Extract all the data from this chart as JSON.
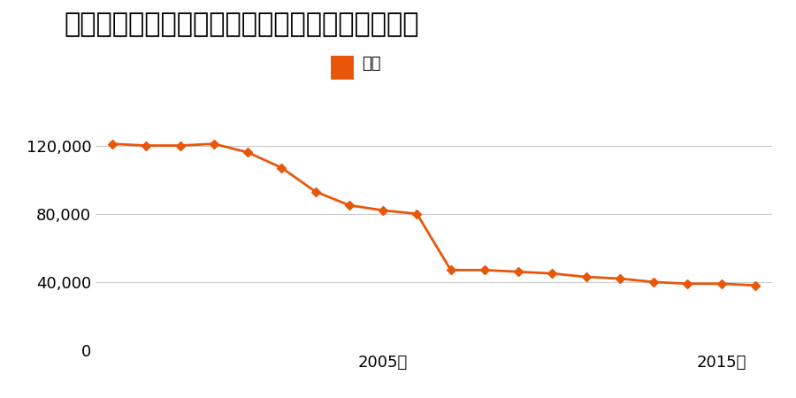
{
  "title": "鳥取県鳥取市吉成字下池田１０２２番の地価推移",
  "legend_label": "価格",
  "line_color": "#e8560a",
  "marker_color": "#e8560a",
  "background_color": "#ffffff",
  "years": [
    1997,
    1998,
    1999,
    2000,
    2001,
    2002,
    2003,
    2004,
    2005,
    2006,
    2007,
    2008,
    2009,
    2010,
    2011,
    2012,
    2013,
    2014,
    2015,
    2016
  ],
  "values": [
    121000,
    120000,
    120000,
    121000,
    116000,
    107000,
    93000,
    85000,
    82000,
    80000,
    47000,
    47000,
    46000,
    45000,
    43000,
    42000,
    40000,
    39000,
    39000,
    38000
  ],
  "ylim": [
    0,
    140000
  ],
  "yticks": [
    0,
    40000,
    80000,
    120000
  ],
  "ytick_labels": [
    "0",
    "40,000",
    "80,000",
    "120,000"
  ],
  "xtick_years": [
    2005,
    2015
  ],
  "xtick_labels": [
    "2005年",
    "2015年"
  ],
  "title_fontsize": 22,
  "legend_fontsize": 13,
  "tick_fontsize": 13,
  "grid_color": "#cccccc",
  "line_width": 2.0,
  "marker_size": 5
}
